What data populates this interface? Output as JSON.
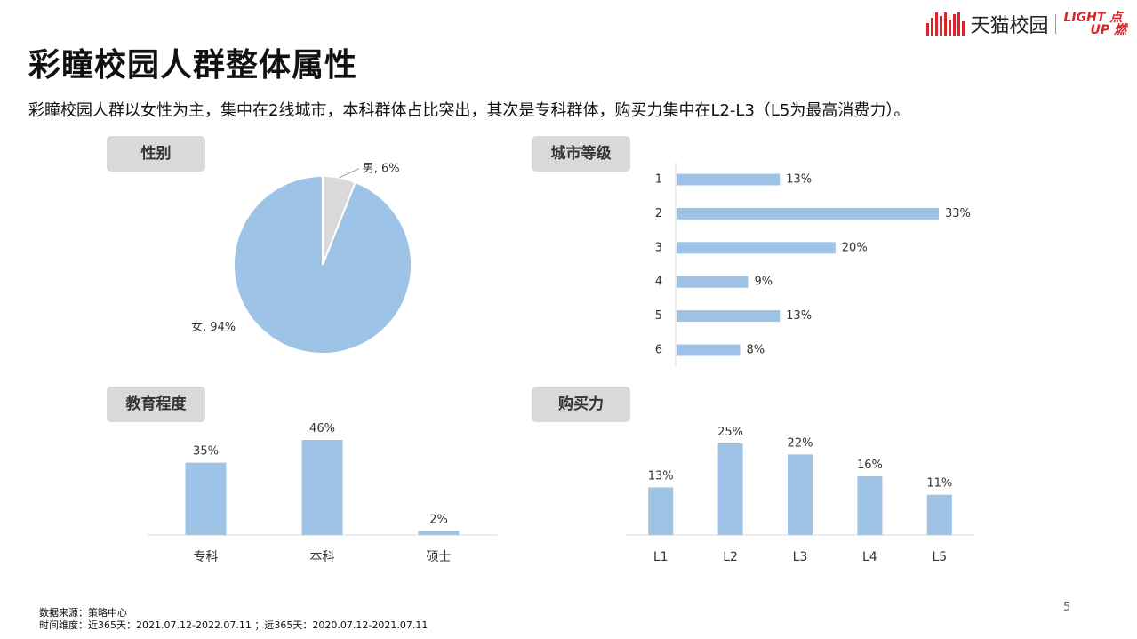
{
  "header": {
    "logo_text": "天猫校园",
    "logo_light": "LIGHT",
    "logo_up": "UP",
    "logo_dian": "点",
    "logo_ran": "燃"
  },
  "title": "彩瞳校园人群整体属性",
  "subtitle": "彩瞳校园人群以女性为主，集中在2线城市，本科群体占比突出，其次是专科群体，购买力集中在L2-L3（L5为最高消费力）。",
  "sections": {
    "gender": "性别",
    "city": "城市等级",
    "education": "教育程度",
    "purchase": "购买力"
  },
  "colors": {
    "blue": "#9dc3e6",
    "gray": "#d9d9d9"
  },
  "chart_data": [
    {
      "type": "pie",
      "title": "性别",
      "slices": [
        {
          "label": "男",
          "value": 6,
          "display": "男, 6%",
          "color": "#d9d9d9"
        },
        {
          "label": "女",
          "value": 94,
          "display": "女, 94%",
          "color": "#9dc3e6"
        }
      ]
    },
    {
      "type": "bar",
      "orientation": "horizontal",
      "title": "城市等级",
      "categories": [
        "1",
        "2",
        "3",
        "4",
        "5",
        "6"
      ],
      "values": [
        13,
        33,
        20,
        9,
        13,
        8
      ],
      "labels": [
        "13%",
        "33%",
        "20%",
        "9%",
        "13%",
        "8%"
      ],
      "xlim": [
        0,
        33
      ]
    },
    {
      "type": "bar",
      "title": "教育程度",
      "categories": [
        "专科",
        "本科",
        "硕士"
      ],
      "values": [
        35,
        46,
        2
      ],
      "labels": [
        "35%",
        "46%",
        "2%"
      ],
      "ylim": [
        0,
        46
      ]
    },
    {
      "type": "bar",
      "title": "购买力",
      "categories": [
        "L1",
        "L2",
        "L3",
        "L4",
        "L5"
      ],
      "values": [
        13,
        25,
        22,
        16,
        11
      ],
      "labels": [
        "13%",
        "25%",
        "22%",
        "16%",
        "11%"
      ],
      "ylim": [
        0,
        25
      ]
    }
  ],
  "footer": {
    "source": "数据来源：策略中心",
    "time": "时间维度：近365天：2021.07.12-2022.07.11 ；远365天：2020.07.12-2021.07.11",
    "page": "5"
  }
}
